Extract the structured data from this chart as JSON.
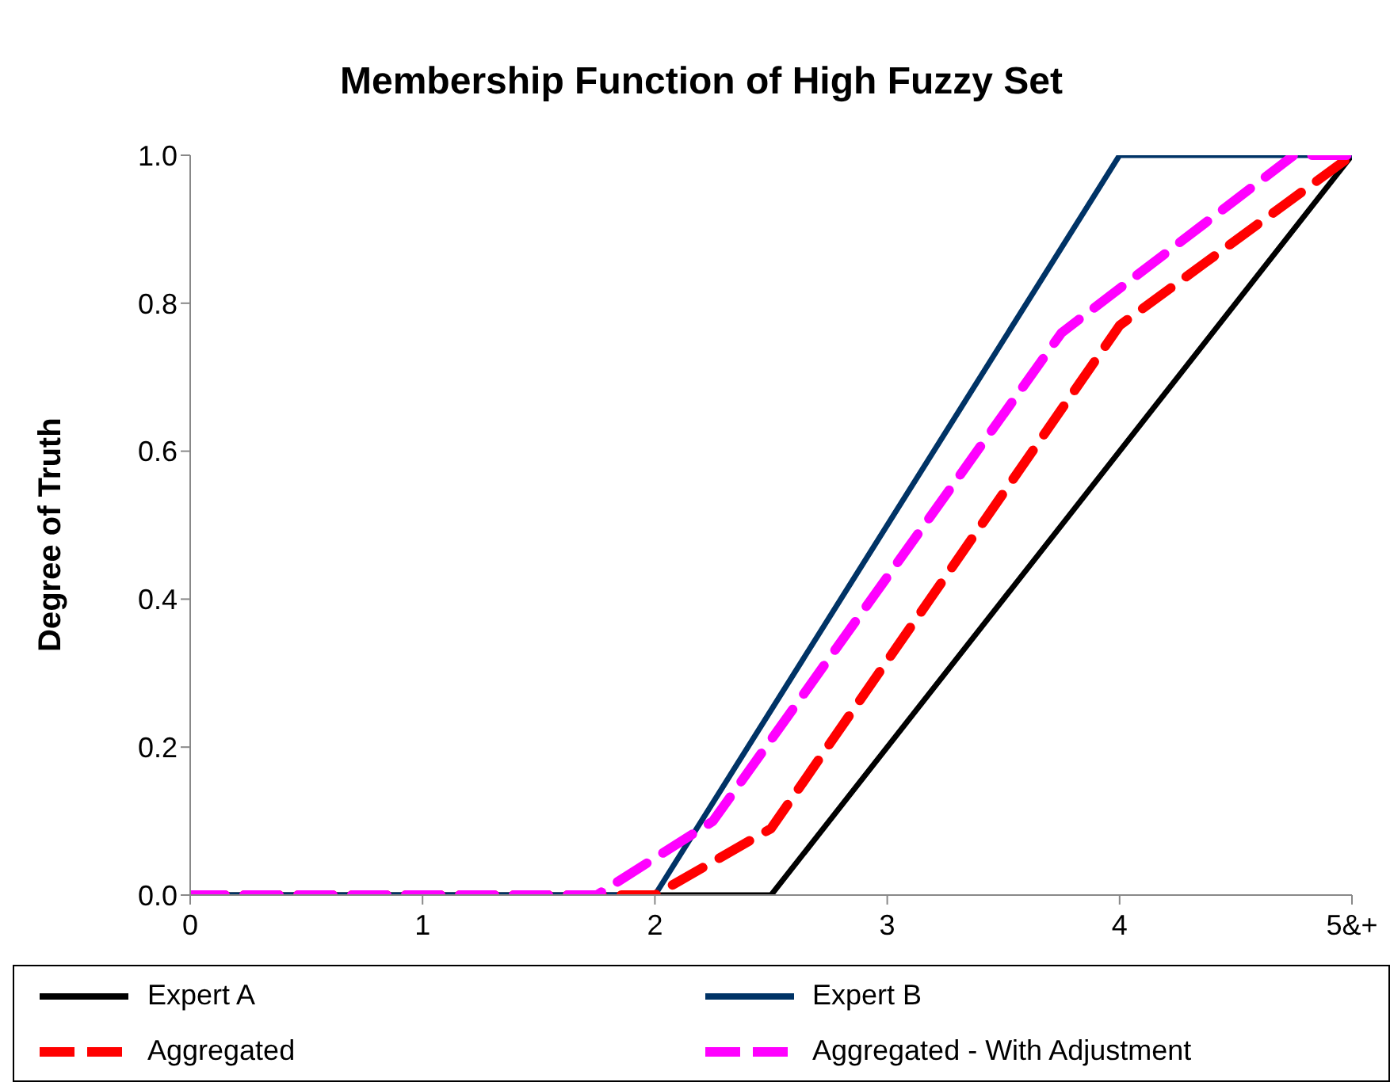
{
  "chart_data": {
    "type": "line",
    "title": "Membership Function of High Fuzzy Set",
    "ylabel": "Degree of Truth",
    "xlim": [
      0,
      5
    ],
    "xticks": [
      0,
      1,
      2,
      3,
      4,
      {
        "value": 5,
        "label": "5&+"
      }
    ],
    "ylim": [
      0,
      1
    ],
    "yticks": [
      {
        "value": 0,
        "label": "0.0"
      },
      {
        "value": 0.2,
        "label": "0.2"
      },
      {
        "value": 0.4,
        "label": "0.4"
      },
      {
        "value": 0.6,
        "label": "0.6"
      },
      {
        "value": 0.8,
        "label": "0.8"
      },
      {
        "value": 1,
        "label": "1.0"
      }
    ],
    "grid": false,
    "legend": "bottom",
    "marker": "none",
    "series": [
      {
        "name": "Expert A",
        "color": "#000000",
        "line_style": "solid",
        "x": [
          0,
          2.5,
          5
        ],
        "values": [
          0,
          0,
          1
        ]
      },
      {
        "name": "Expert B",
        "color": "#003366",
        "line_style": "solid",
        "x": [
          0,
          2,
          4,
          5
        ],
        "values": [
          0,
          0,
          1,
          1
        ]
      },
      {
        "name": "Aggregated",
        "color": "#ff0000",
        "line_style": "dashed",
        "x": [
          0,
          2,
          2.5,
          4,
          5
        ],
        "values": [
          0,
          0,
          0.09,
          0.77,
          1
        ]
      },
      {
        "name": "Aggregated - With Adjustment",
        "color": "#ff00ff",
        "line_style": "dashed",
        "x": [
          0,
          1.75,
          2.25,
          3.75,
          4.75,
          5
        ],
        "values": [
          0,
          0,
          0.1,
          0.76,
          1,
          1
        ]
      }
    ]
  }
}
